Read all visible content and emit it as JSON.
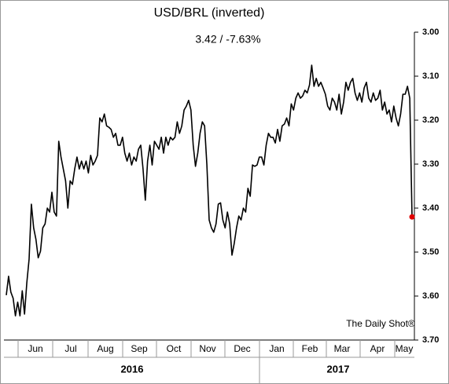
{
  "chart_data": {
    "type": "line",
    "title": "USD/BRL (inverted)",
    "subtitle": "3.42  /  -7.63%",
    "annotation": "The Daily Shot®",
    "x_labels": [
      "Jun",
      "Jul",
      "Aug",
      "Sep",
      "Oct",
      "Nov",
      "Dec",
      "Jan",
      "Feb",
      "Mar",
      "Apr",
      "May"
    ],
    "year_labels": [
      "2016",
      "2017"
    ],
    "inverted": true,
    "ylim": [
      3.0,
      3.7
    ],
    "yticks": [
      {
        "value": 3.0,
        "label": "3.00"
      },
      {
        "value": 3.1,
        "label": "3.10"
      },
      {
        "value": 3.2,
        "label": "3.20"
      },
      {
        "value": 3.3,
        "label": "3.30"
      },
      {
        "value": 3.4,
        "label": "3.40"
      },
      {
        "value": 3.5,
        "label": "3.50"
      },
      {
        "value": 3.6,
        "label": "3.60"
      },
      {
        "value": 3.7,
        "label": "3.70"
      }
    ],
    "color": "#000000",
    "end_marker_color": "#e00000",
    "values": [
      3.598,
      3.555,
      3.591,
      3.605,
      3.645,
      3.614,
      3.645,
      3.588,
      3.641,
      3.57,
      3.516,
      3.391,
      3.445,
      3.471,
      3.513,
      3.498,
      3.445,
      3.436,
      3.4,
      3.409,
      3.364,
      3.409,
      3.418,
      3.248,
      3.284,
      3.311,
      3.338,
      3.4,
      3.338,
      3.346,
      3.311,
      3.284,
      3.311,
      3.293,
      3.311,
      3.293,
      3.32,
      3.28,
      3.302,
      3.293,
      3.28,
      3.195,
      3.204,
      3.186,
      3.213,
      3.216,
      3.221,
      3.239,
      3.23,
      3.257,
      3.257,
      3.239,
      3.275,
      3.293,
      3.275,
      3.302,
      3.284,
      3.293,
      3.266,
      3.257,
      3.311,
      3.382,
      3.293,
      3.257,
      3.302,
      3.248,
      3.257,
      3.266,
      3.239,
      3.275,
      3.239,
      3.257,
      3.239,
      3.245,
      3.239,
      3.204,
      3.23,
      3.213,
      3.177,
      3.168,
      3.155,
      3.177,
      3.257,
      3.305,
      3.275,
      3.23,
      3.204,
      3.213,
      3.302,
      3.427,
      3.445,
      3.455,
      3.436,
      3.391,
      3.388,
      3.427,
      3.445,
      3.409,
      3.436,
      3.507,
      3.48,
      3.445,
      3.418,
      3.427,
      3.4,
      3.409,
      3.355,
      3.373,
      3.302,
      3.305,
      3.302,
      3.284,
      3.284,
      3.302,
      3.257,
      3.23,
      3.239,
      3.239,
      3.252,
      3.221,
      3.248,
      3.213,
      3.209,
      3.195,
      3.213,
      3.163,
      3.177,
      3.15,
      3.138,
      3.15,
      3.145,
      3.132,
      3.138,
      3.12,
      3.075,
      3.123,
      3.105,
      3.123,
      3.114,
      3.127,
      3.141,
      3.168,
      3.177,
      3.15,
      3.159,
      3.177,
      3.141,
      3.186,
      3.159,
      3.114,
      3.132,
      3.114,
      3.105,
      3.138,
      3.155,
      3.138,
      3.159,
      3.127,
      3.114,
      3.15,
      3.159,
      3.138,
      3.155,
      3.15,
      3.132,
      3.177,
      3.159,
      3.186,
      3.177,
      3.204,
      3.168,
      3.195,
      3.213,
      3.186,
      3.141,
      3.141,
      3.123,
      3.15,
      3.42
    ]
  }
}
